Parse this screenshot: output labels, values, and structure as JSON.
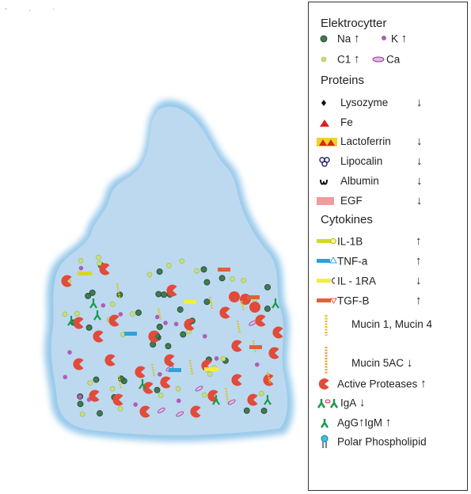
{
  "top_marks": "-  . ·",
  "legend": {
    "sections": [
      {
        "heading": "Elektrocytter"
      },
      {
        "heading": "Proteins"
      },
      {
        "heading": "Cytokines"
      }
    ],
    "electrolytes": [
      {
        "label": "Na",
        "arrow": "↑",
        "icon": "dark-green-dot-icon"
      },
      {
        "label": "K",
        "arrow": "↑",
        "icon": "purple-dot-icon"
      },
      {
        "label": "C1",
        "arrow": "↑",
        "icon": "light-green-dot-icon"
      },
      {
        "label": "Ca",
        "arrow": "",
        "icon": "purple-ellipse-icon"
      }
    ],
    "proteins": [
      {
        "label": "Lysozyme",
        "arrow": "↓",
        "icon": "black-diamond-icon"
      },
      {
        "label": "Fe",
        "arrow": "",
        "icon": "red-triangle-icon"
      },
      {
        "label": "Lactoferrin",
        "arrow": "↓",
        "icon": "lactoferrin-icon"
      },
      {
        "label": "Lipocalin",
        "arrow": "↓",
        "icon": "lipocalin-icon"
      },
      {
        "label": "Albumin",
        "arrow": "↓",
        "icon": "albumin-icon"
      },
      {
        "label": "EGF",
        "arrow": "↓",
        "icon": "pink-bar-icon"
      }
    ],
    "cytokines": [
      {
        "label": "IL-1B",
        "arrow": "↑",
        "icon": "il1b-icon"
      },
      {
        "label": "TNF-a",
        "arrow": "↑",
        "icon": "tnfa-icon"
      },
      {
        "label": "IL - 1RA",
        "arrow": "↓",
        "icon": "il1ra-icon"
      },
      {
        "label": "TGF-B",
        "arrow": "↑",
        "icon": "tgfb-icon"
      }
    ],
    "others": [
      {
        "label": "Mucin 1, Mucin 4",
        "arrow": "",
        "icon": "mucin1-icon"
      },
      {
        "label": "Mucin 5AC",
        "arrow": "↓",
        "icon": "mucin5ac-icon"
      },
      {
        "label": "Active Proteases",
        "arrow": "↑",
        "icon": "protease-icon"
      },
      {
        "label": "IgA",
        "arrow": "↓",
        "icon": "iga-icon"
      },
      {
        "label": "AgG",
        "arrow": "↑",
        "label2": "IgM",
        "arrow2": "↑",
        "icon": "igg-icon"
      },
      {
        "label": "Polar Phospholipid",
        "arrow": "",
        "icon": "phospholipid-icon"
      }
    ]
  },
  "colors": {
    "fluid": "#bcd9ef",
    "fluid_border": "#8cc3e8",
    "na": "#3f7a52",
    "k": "#b25bb7",
    "cl": "#c6df7a",
    "protease": "#e24a3a",
    "lactoferrin": "#f3d12a",
    "egf": "#ef9c9c",
    "tnf": "#2ea2d8",
    "tgf": "#e0603a"
  }
}
